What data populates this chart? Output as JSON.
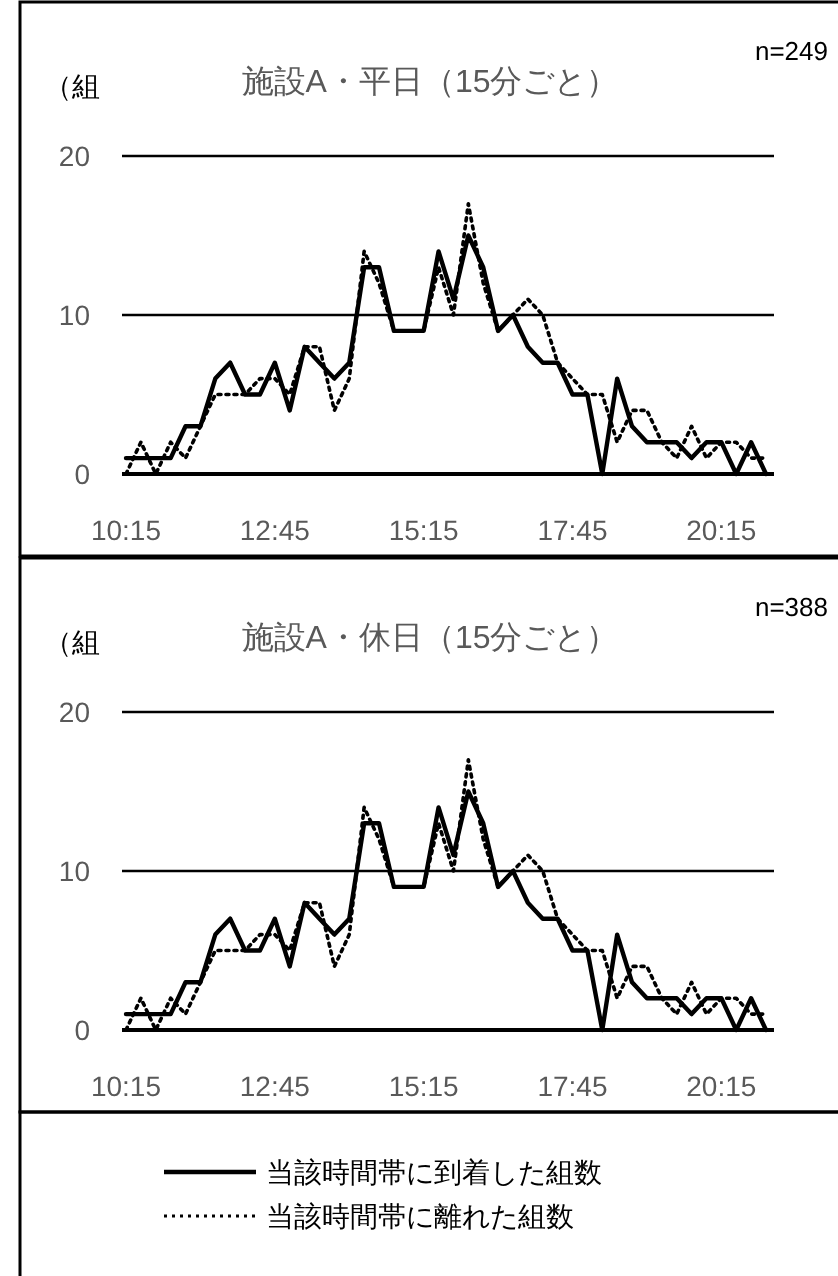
{
  "chart_data": [
    {
      "type": "line",
      "title": "施設A・平日（15分ごと）",
      "ylabel": "（組",
      "annotations": [
        "n=249"
      ],
      "categories": [
        "10:15",
        null,
        null,
        null,
        null,
        null,
        null,
        null,
        null,
        null,
        "12:45",
        null,
        null,
        null,
        null,
        null,
        null,
        null,
        null,
        null,
        "15:15",
        null,
        null,
        null,
        null,
        null,
        null,
        null,
        null,
        null,
        "17:45",
        null,
        null,
        null,
        null,
        null,
        null,
        null,
        null,
        null,
        "20:15",
        null,
        null,
        null
      ],
      "series": [
        {
          "color": "#000000",
          "line_style": "solid",
          "values": [
            1,
            1,
            1,
            1,
            3,
            3,
            6,
            7,
            5,
            5,
            7,
            4,
            8,
            7,
            6,
            7,
            13,
            13,
            9,
            9,
            9,
            14,
            11,
            15,
            13,
            9,
            10,
            8,
            7,
            7,
            5,
            5,
            0,
            6,
            3,
            2,
            2,
            2,
            1,
            2,
            2,
            0,
            2,
            0
          ]
        },
        {
          "color": "#000000",
          "line_style": "dotted",
          "values": [
            0,
            2,
            0,
            2,
            1,
            3,
            5,
            5,
            5,
            6,
            6,
            5,
            8,
            8,
            4,
            6,
            14,
            12,
            9,
            9,
            9,
            13,
            10,
            17,
            12,
            9,
            10,
            11,
            10,
            7,
            6,
            5,
            5,
            2,
            4,
            4,
            2,
            1,
            3,
            1,
            2,
            2,
            1,
            1
          ]
        }
      ],
      "ylim": [
        0,
        20
      ],
      "yticks": [
        0,
        10,
        20
      ],
      "grid": "y",
      "legend": false
    },
    {
      "type": "line",
      "title": "施設A・休日（15分ごと）",
      "ylabel": "（組",
      "annotations": [
        "n=388"
      ],
      "categories": [
        "10:15",
        null,
        null,
        null,
        null,
        null,
        null,
        null,
        null,
        null,
        "12:45",
        null,
        null,
        null,
        null,
        null,
        null,
        null,
        null,
        null,
        "15:15",
        null,
        null,
        null,
        null,
        null,
        null,
        null,
        null,
        null,
        "17:45",
        null,
        null,
        null,
        null,
        null,
        null,
        null,
        null,
        null,
        "20:15",
        null,
        null,
        null
      ],
      "series": [
        {
          "name": "当該時間帯に到着した組数",
          "color": "#000000",
          "line_style": "solid",
          "values": [
            1,
            1,
            1,
            1,
            3,
            3,
            6,
            7,
            5,
            5,
            7,
            4,
            8,
            7,
            6,
            7,
            13,
            13,
            9,
            9,
            9,
            14,
            11,
            15,
            13,
            9,
            10,
            8,
            7,
            7,
            5,
            5,
            0,
            6,
            3,
            2,
            2,
            2,
            1,
            2,
            2,
            0,
            2,
            0
          ]
        },
        {
          "name": "当該時間帯に離れた組数",
          "color": "#000000",
          "line_style": "dotted",
          "values": [
            0,
            2,
            0,
            2,
            1,
            3,
            5,
            5,
            5,
            6,
            6,
            5,
            8,
            8,
            4,
            6,
            14,
            12,
            9,
            9,
            9,
            13,
            10,
            17,
            12,
            9,
            10,
            11,
            10,
            7,
            6,
            5,
            5,
            2,
            4,
            4,
            2,
            1,
            3,
            1,
            2,
            2,
            1,
            1
          ]
        }
      ],
      "ylim": [
        0,
        20
      ],
      "yticks": [
        0,
        10,
        20
      ],
      "grid": "y",
      "legend": "bottom"
    }
  ]
}
